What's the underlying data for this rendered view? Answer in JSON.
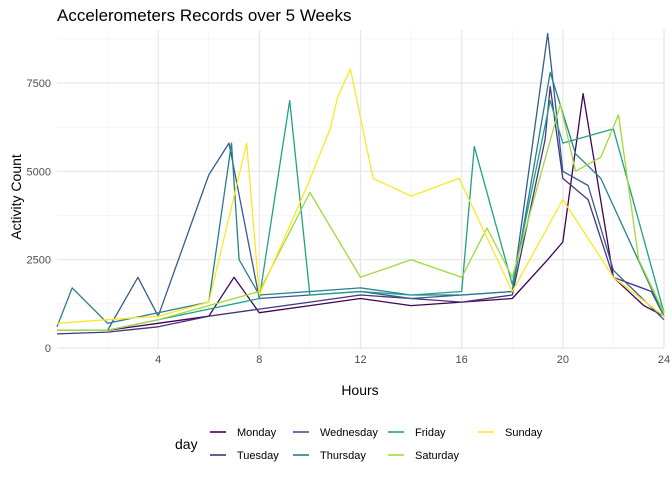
{
  "chart_data": {
    "type": "line",
    "title": "Accelerometers Records over 5 Weeks",
    "xlabel": "Hours",
    "ylabel": "Activity Count",
    "xlim": [
      0,
      24
    ],
    "ylim": [
      0,
      9000
    ],
    "x_ticks": [
      4,
      8,
      12,
      16,
      20,
      24
    ],
    "x_tick_labels": [
      "4",
      "8",
      "12",
      "16",
      "20",
      "24"
    ],
    "y_ticks": [
      0,
      2500,
      5000,
      7500
    ],
    "y_tick_labels": [
      "0",
      "2500",
      "5000",
      "7500"
    ],
    "grid": true,
    "legend_title": "day",
    "legend_position": "bottom",
    "series": [
      {
        "name": "Monday",
        "color": "#440154",
        "x": [
          0,
          2,
          4,
          6,
          7,
          8,
          10,
          12,
          14,
          16,
          18,
          19.4,
          20.0,
          20.8,
          22,
          23.2,
          24
        ],
        "y": [
          500,
          500,
          700,
          900,
          2000,
          1000,
          1200,
          1400,
          1200,
          1300,
          1400,
          2500,
          3000,
          7200,
          2000,
          1200,
          900
        ]
      },
      {
        "name": "Tuesday",
        "color": "#46337E",
        "x": [
          0,
          2,
          4,
          6,
          8,
          10,
          12,
          14,
          16,
          18,
          19.3,
          19.5,
          20,
          21,
          22,
          23.5,
          24
        ],
        "y": [
          400,
          450,
          600,
          900,
          1100,
          1300,
          1500,
          1400,
          1300,
          1500,
          5900,
          7400,
          4800,
          4200,
          2000,
          1600,
          900
        ]
      },
      {
        "name": "Wednesday",
        "color": "#365C8D",
        "x": [
          0,
          2,
          3.2,
          4,
          6,
          6.8,
          8,
          10,
          12,
          14,
          16,
          18,
          19.4,
          20,
          21,
          22,
          24
        ],
        "y": [
          500,
          500,
          2000,
          900,
          4900,
          5800,
          1400,
          1500,
          1600,
          1400,
          1500,
          1600,
          8900,
          5000,
          4600,
          2200,
          800
        ]
      },
      {
        "name": "Thursday",
        "color": "#277F8E",
        "x": [
          0,
          0.6,
          2,
          4,
          6,
          6.9,
          7.2,
          8,
          10,
          12,
          14,
          16,
          18,
          19.5,
          20.5,
          21.5,
          24
        ],
        "y": [
          600,
          1700,
          700,
          1000,
          1300,
          5800,
          2500,
          1500,
          1600,
          1700,
          1500,
          1500,
          1600,
          7800,
          5500,
          4800,
          900
        ]
      },
      {
        "name": "Friday",
        "color": "#1FA187",
        "x": [
          0,
          2,
          4,
          6,
          8,
          9.2,
          10,
          12,
          14,
          16,
          16.5,
          18,
          19.5,
          20,
          21,
          22,
          24
        ],
        "y": [
          500,
          500,
          800,
          1100,
          1400,
          7000,
          1500,
          1600,
          1500,
          1600,
          5700,
          1800,
          7000,
          5800,
          6000,
          6200,
          1000
        ]
      },
      {
        "name": "Saturday",
        "color": "#9FDA3A",
        "x": [
          0,
          2,
          4,
          6,
          8,
          10,
          12,
          14,
          16,
          17,
          18,
          19.9,
          20.5,
          21.5,
          22.2,
          23,
          24
        ],
        "y": [
          500,
          500,
          800,
          1200,
          1600,
          4400,
          2000,
          2500,
          2000,
          3400,
          2000,
          6900,
          5000,
          5400,
          6600,
          2500,
          1000
        ]
      },
      {
        "name": "Sunday",
        "color": "#FDE725",
        "x": [
          0,
          2,
          4,
          6,
          7.5,
          8,
          9.9,
          10.8,
          11.1,
          11.6,
          12.5,
          14,
          15.9,
          18,
          20,
          22,
          24
        ],
        "y": [
          700,
          800,
          900,
          1300,
          5800,
          1500,
          4600,
          6200,
          7100,
          7900,
          4800,
          4300,
          4800,
          1600,
          4200,
          2000,
          900
        ]
      }
    ]
  }
}
